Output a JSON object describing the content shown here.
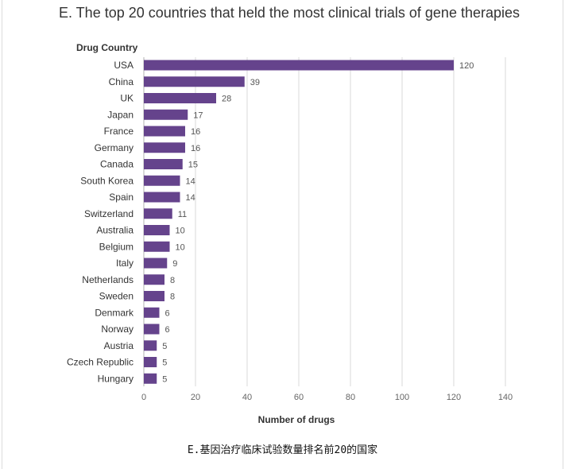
{
  "title": "E. The top 20 countries that held the most clinical trials of gene therapies",
  "caption": "E.基因治疗临床试验数量排名前20的国家",
  "chart_data": {
    "type": "bar",
    "orientation": "horizontal",
    "ylabel": "Drug Country",
    "xlabel": "Number of drugs",
    "categories": [
      "USA",
      "China",
      "UK",
      "Japan",
      "France",
      "Germany",
      "Canada",
      "South Korea",
      "Spain",
      "Switzerland",
      "Australia",
      "Belgium",
      "Italy",
      "Netherlands",
      "Sweden",
      "Denmark",
      "Norway",
      "Austria",
      "Czech Republic",
      "Hungary"
    ],
    "values": [
      120,
      39,
      28,
      17,
      16,
      16,
      15,
      14,
      14,
      11,
      10,
      10,
      9,
      8,
      8,
      6,
      6,
      5,
      5,
      5
    ],
    "xlim": [
      0,
      140
    ],
    "xticks": [
      0,
      20,
      40,
      60,
      80,
      100,
      120,
      140
    ],
    "grid": true,
    "data_labels": true,
    "bar_color": "#65438c"
  }
}
